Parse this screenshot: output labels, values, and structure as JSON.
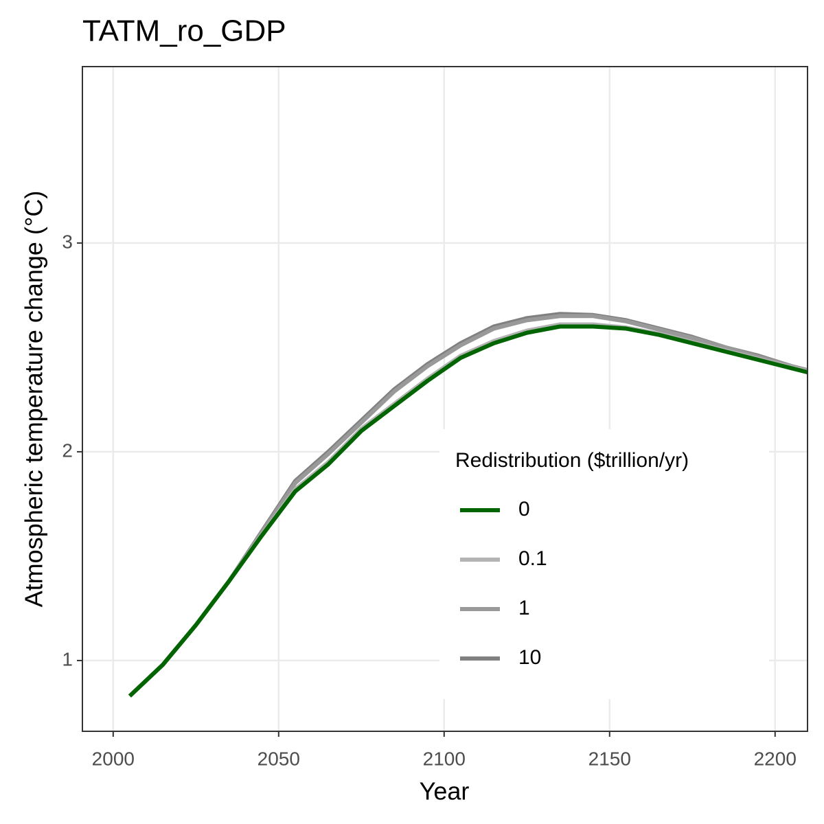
{
  "chart_data": {
    "type": "line",
    "title": "TATM_ro_GDP",
    "x_label": "Year",
    "y_label": "Atmospheric temperature change (°C)",
    "x": [
      2005,
      2015,
      2025,
      2035,
      2045,
      2055,
      2065,
      2075,
      2085,
      2095,
      2105,
      2115,
      2125,
      2135,
      2145,
      2155,
      2165,
      2175,
      2185,
      2195,
      2205,
      2210
    ],
    "series": [
      {
        "name": "0",
        "color": "#006400",
        "values": [
          0.83,
          0.98,
          1.17,
          1.38,
          1.6,
          1.81,
          1.94,
          2.1,
          2.22,
          2.34,
          2.45,
          2.52,
          2.57,
          2.6,
          2.6,
          2.59,
          2.56,
          2.52,
          2.48,
          2.44,
          2.4,
          2.38
        ]
      },
      {
        "name": "0.1",
        "color": "#b3b3b3",
        "values": [
          0.83,
          0.98,
          1.17,
          1.38,
          1.605,
          1.82,
          1.95,
          2.11,
          2.23,
          2.35,
          2.46,
          2.53,
          2.58,
          2.61,
          2.61,
          2.595,
          2.565,
          2.525,
          2.485,
          2.445,
          2.405,
          2.385
        ]
      },
      {
        "name": "1",
        "color": "#999999",
        "values": [
          0.83,
          0.98,
          1.17,
          1.38,
          1.615,
          1.85,
          1.99,
          2.14,
          2.29,
          2.41,
          2.51,
          2.59,
          2.63,
          2.65,
          2.65,
          2.625,
          2.585,
          2.545,
          2.5,
          2.455,
          2.41,
          2.39
        ]
      },
      {
        "name": "10",
        "color": "#808080",
        "values": [
          0.83,
          0.98,
          1.17,
          1.38,
          1.62,
          1.86,
          2.0,
          2.15,
          2.3,
          2.42,
          2.52,
          2.6,
          2.64,
          2.66,
          2.655,
          2.63,
          2.59,
          2.55,
          2.5,
          2.46,
          2.41,
          2.39
        ]
      }
    ],
    "legend_title": "Redistribution ($trillion/yr)",
    "legend_position": "bottom-right",
    "xlim": [
      1990.7,
      2209.8
    ],
    "xticks": [
      2000,
      2050,
      2100,
      2150,
      2200
    ],
    "ylim": [
      0.661,
      3.845
    ],
    "yticks": [
      1,
      2,
      3
    ],
    "grid": true
  }
}
